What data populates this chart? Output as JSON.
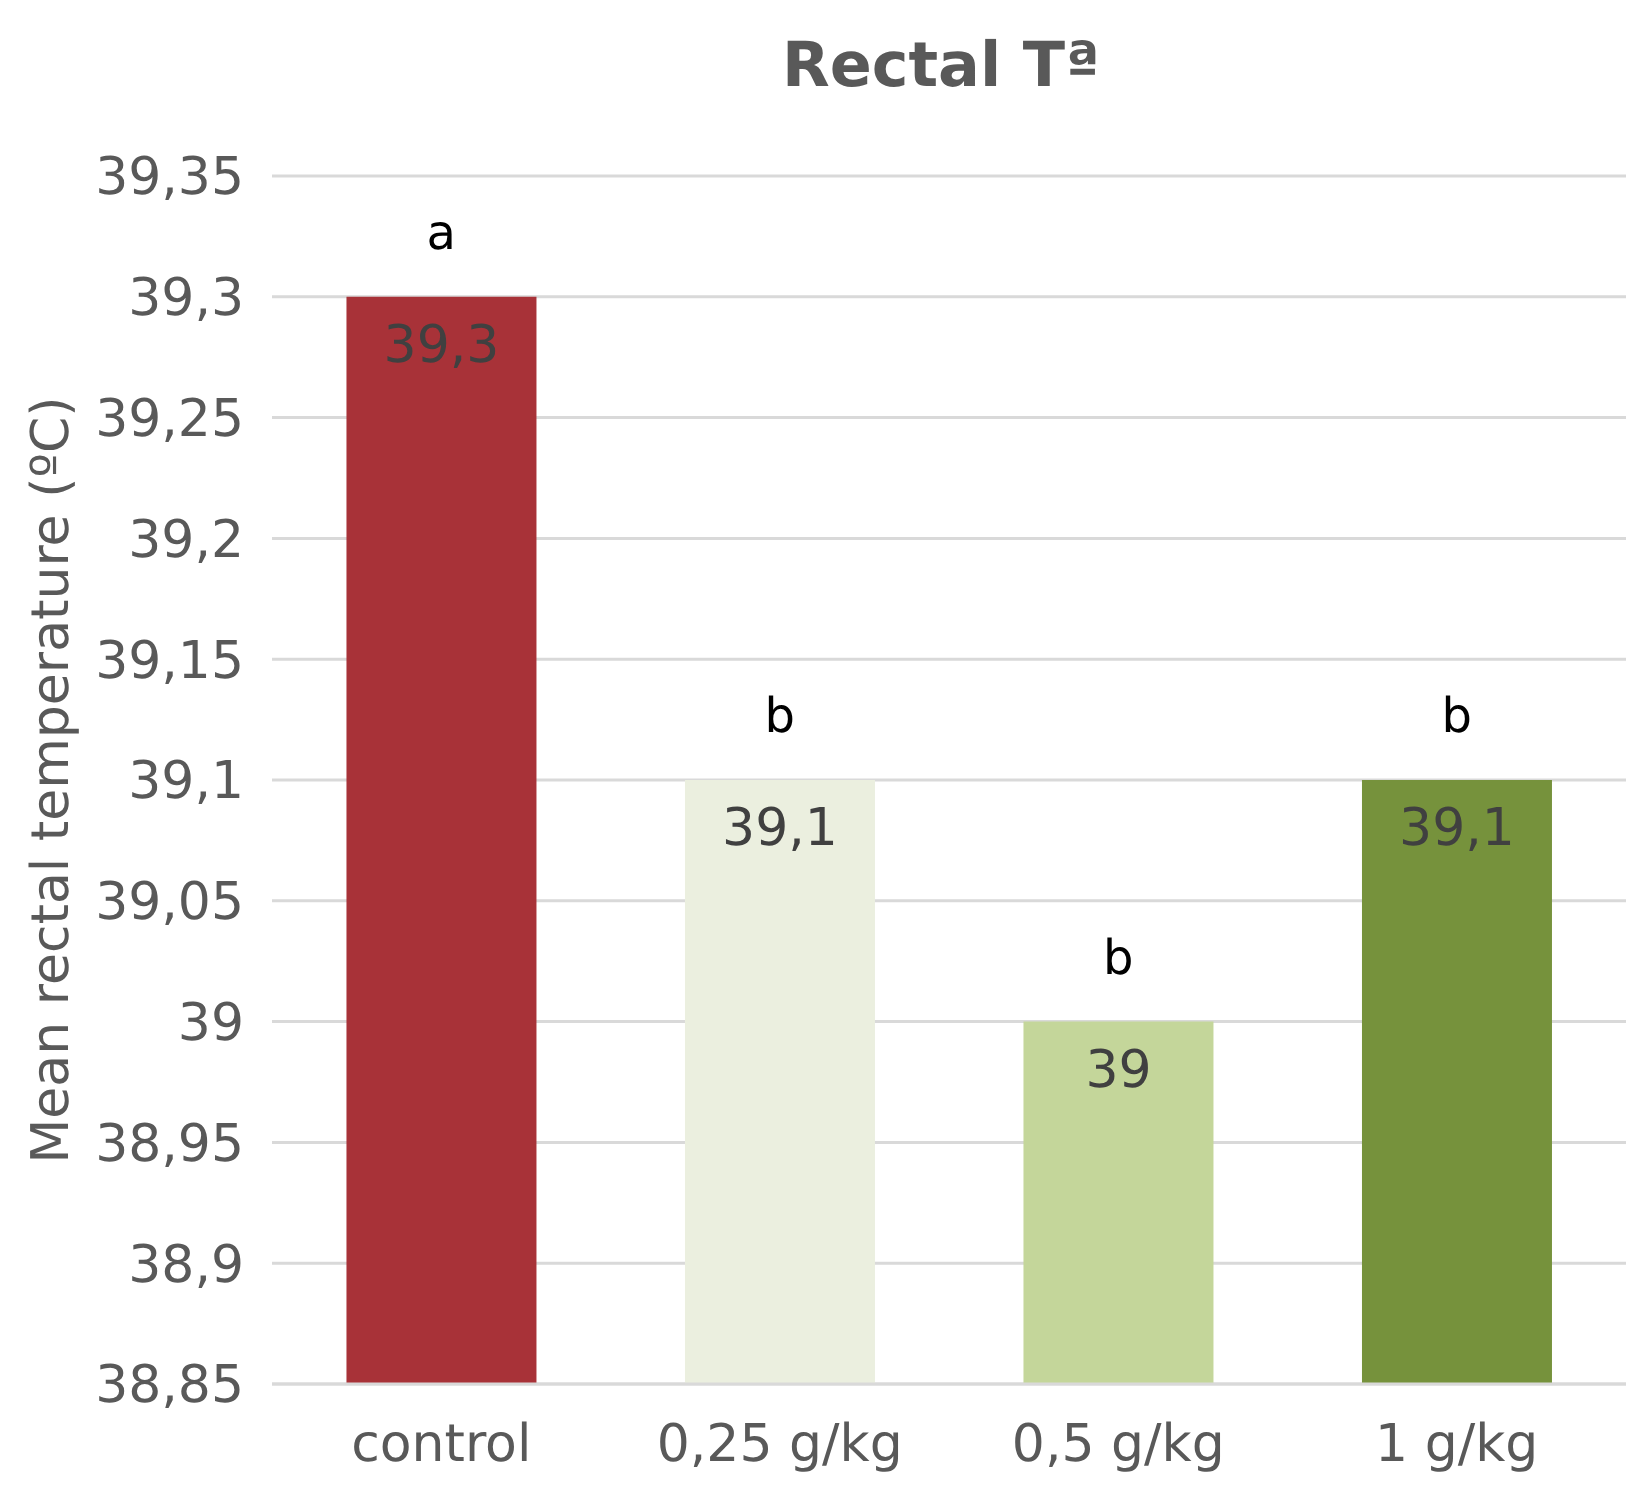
{
  "chart_data": {
    "type": "bar",
    "title": "Rectal Tª",
    "ylabel": "Mean rectal temperature (ºC)",
    "categories": [
      "control",
      "0,25 g/kg",
      "0,5 g/kg",
      "1 g/kg"
    ],
    "values": [
      39.3,
      39.1,
      39.0,
      39.1
    ],
    "colors": [
      "#a83238",
      "#ebefdf",
      "#c4d69a",
      "#76923c"
    ],
    "value_labels": [
      "39,3",
      "39,1",
      "39",
      "39,1"
    ],
    "ylim": [
      38.85,
      39.35
    ],
    "yticks": [
      {
        "value": 38.85,
        "label": "38,85"
      },
      {
        "value": 38.9,
        "label": "38,9"
      },
      {
        "value": 38.95,
        "label": "38,95"
      },
      {
        "value": 39,
        "label": "39"
      },
      {
        "value": 39.05,
        "label": "39,05"
      },
      {
        "value": 39.1,
        "label": "39,1"
      },
      {
        "value": 39.15,
        "label": "39,15"
      },
      {
        "value": 39.2,
        "label": "39,2"
      },
      {
        "value": 39.25,
        "label": "39,25"
      },
      {
        "value": 39.3,
        "label": "39,3"
      },
      {
        "value": 39.35,
        "label": "39,35"
      }
    ],
    "grid": "y",
    "legend": false,
    "annotations": [
      {
        "text": "a",
        "x": "control",
        "y": 39.3
      },
      {
        "text": "b",
        "x": "0,25 g/kg",
        "y": 39.1
      },
      {
        "text": "b",
        "x": "0,5 g/kg",
        "y": 39.0
      },
      {
        "text": "b",
        "x": "1 g/kg",
        "y": 39.1
      }
    ]
  }
}
